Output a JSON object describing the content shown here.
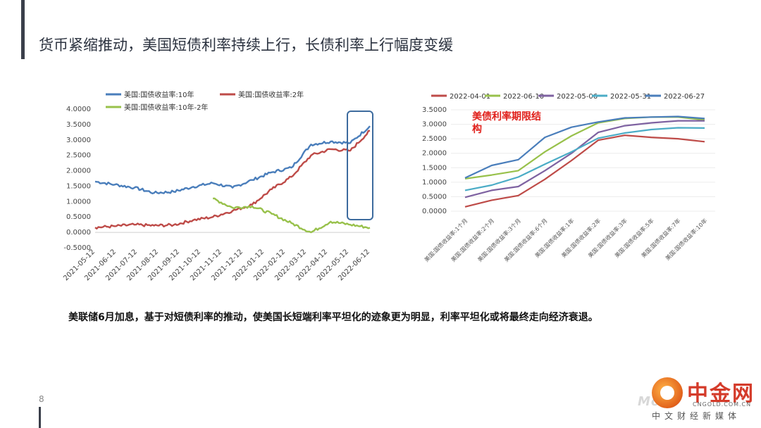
{
  "page": {
    "title": "货币紧缩推动，美国短债利率持续上行，长债利率上行幅度变缓",
    "caption": "美联储6月加息，基于对短债利率的推动，使美国长短端利率平坦化的迹象更为明显，利率平坦化或将最终走向经济衰退。",
    "page_number": "8"
  },
  "logo": {
    "name": "中金网",
    "url": "CNGOLD.COM.CN",
    "tagline": "中文财经新媒体",
    "watermark": "Mo"
  },
  "colors": {
    "blue": "#4a7ebb",
    "red": "#be4b48",
    "green": "#98c14b",
    "purple": "#7e62a1",
    "cyan": "#4bacc6",
    "highlight_box": "#3d6b9e",
    "annotation": "#e0201b"
  },
  "chart_data": [
    {
      "type": "line",
      "title": "",
      "ylim": [
        -0.5,
        4.0
      ],
      "y_ticks": [
        "4.0000",
        "3.5000",
        "3.0000",
        "2.5000",
        "2.0000",
        "1.5000",
        "1.0000",
        "0.5000",
        "0.0000",
        "-0.5000"
      ],
      "x_ticks": [
        "2021-05-12",
        "2021-06-12",
        "2021-07-12",
        "2021-08-12",
        "2021-09-12",
        "2021-10-12",
        "2021-11-12",
        "2021-12-12",
        "2022-01-12",
        "2022-02-12",
        "2022-03-12",
        "2022-04-12",
        "2022-05-12",
        "2022-06-12"
      ],
      "legend_position": "top",
      "series": [
        {
          "name": "美国:国债收益率:10年",
          "color": "#4a7ebb",
          "values": [
            1.65,
            1.55,
            1.45,
            1.28,
            1.32,
            1.48,
            1.6,
            1.45,
            1.7,
            1.95,
            2.1,
            2.85,
            2.95,
            2.9,
            3.45
          ]
        },
        {
          "name": "美国:国债收益率:2年",
          "color": "#be4b48",
          "values": [
            0.16,
            0.2,
            0.25,
            0.22,
            0.24,
            0.4,
            0.5,
            0.7,
            0.9,
            1.4,
            1.8,
            2.5,
            2.7,
            2.65,
            3.3
          ]
        },
        {
          "name": "美国:国债收益率:10年-2年",
          "color": "#98c14b",
          "values": [
            null,
            null,
            null,
            null,
            null,
            null,
            1.1,
            0.8,
            0.85,
            0.6,
            0.3,
            0.0,
            0.35,
            0.25,
            0.15
          ]
        }
      ],
      "highlight": "2022-06"
    },
    {
      "type": "line",
      "title": "",
      "annotation": "美债利率期限结构",
      "ylim": [
        0.0,
        3.5
      ],
      "y_ticks": [
        "3.5000",
        "3.0000",
        "2.5000",
        "2.0000",
        "1.5000",
        "1.0000",
        "0.5000",
        "0.0000"
      ],
      "categories": [
        "美国:国债收益率:1个月",
        "美国:国债收益率:2个月",
        "美国:国债收益率:3个月",
        "美国:国债收益率:6个月",
        "美国:国债收益率:1年",
        "美国:国债收益率:2年",
        "美国:国债收益率:3年",
        "美国:国债收益率:5年",
        "美国:国债收益率:7年",
        "美国:国债收益率:10年"
      ],
      "legend_position": "top",
      "series": [
        {
          "name": "2022-04-01",
          "color": "#be4b48",
          "values": [
            0.15,
            0.38,
            0.54,
            1.1,
            1.75,
            2.45,
            2.62,
            2.55,
            2.5,
            2.4
          ]
        },
        {
          "name": "2022-06-10",
          "color": "#98c14b",
          "values": [
            1.12,
            1.25,
            1.4,
            2.05,
            2.6,
            3.05,
            3.2,
            3.25,
            3.25,
            3.15
          ]
        },
        {
          "name": "2022-05-06",
          "color": "#7e62a1",
          "values": [
            0.48,
            0.72,
            0.85,
            1.4,
            2.0,
            2.72,
            2.95,
            3.05,
            3.12,
            3.12
          ]
        },
        {
          "name": "2022-05-31",
          "color": "#4bacc6",
          "values": [
            0.72,
            0.9,
            1.18,
            1.62,
            2.05,
            2.52,
            2.7,
            2.82,
            2.88,
            2.87
          ]
        },
        {
          "name": "2022-06-27",
          "color": "#4a7ebb",
          "values": [
            1.15,
            1.58,
            1.78,
            2.55,
            2.9,
            3.08,
            3.22,
            3.25,
            3.27,
            3.2
          ]
        }
      ]
    }
  ]
}
